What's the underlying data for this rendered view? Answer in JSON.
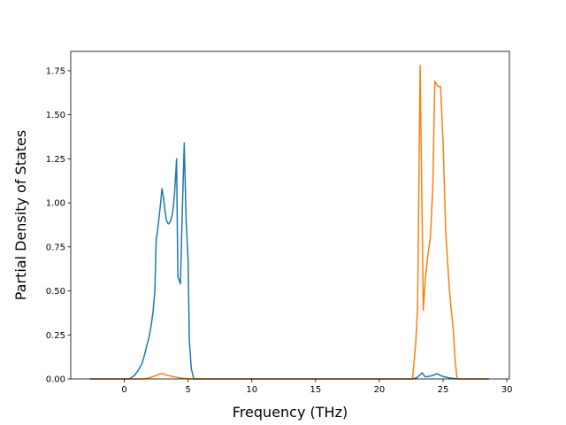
{
  "chart_data": {
    "type": "line",
    "title": "",
    "xlabel": "Frequency (THz)",
    "ylabel": "Partial Density of States",
    "xlim": [
      -4.2,
      30.2
    ],
    "ylim": [
      0.0,
      1.86
    ],
    "xticks": [
      0,
      5,
      10,
      15,
      20,
      25,
      30
    ],
    "yticks": [
      0.0,
      0.25,
      0.5,
      0.75,
      1.0,
      1.25,
      1.5,
      1.75
    ],
    "grid": false,
    "legend": "none",
    "series": [
      {
        "color": "#1f77b4",
        "points": [
          [
            -2.7,
            0.0
          ],
          [
            0.0,
            0.0
          ],
          [
            0.4,
            0.0
          ],
          [
            0.8,
            0.02
          ],
          [
            1.1,
            0.05
          ],
          [
            1.4,
            0.09
          ],
          [
            1.6,
            0.14
          ],
          [
            1.8,
            0.2
          ],
          [
            1.95,
            0.24
          ],
          [
            2.1,
            0.3
          ],
          [
            2.25,
            0.38
          ],
          [
            2.4,
            0.5
          ],
          [
            2.5,
            0.79
          ],
          [
            2.6,
            0.84
          ],
          [
            2.7,
            0.9
          ],
          [
            2.85,
            1.0
          ],
          [
            2.95,
            1.08
          ],
          [
            3.05,
            1.04
          ],
          [
            3.2,
            0.95
          ],
          [
            3.3,
            0.9
          ],
          [
            3.45,
            0.88
          ],
          [
            3.6,
            0.89
          ],
          [
            3.75,
            0.93
          ],
          [
            3.85,
            0.98
          ],
          [
            3.95,
            1.06
          ],
          [
            4.1,
            1.25
          ],
          [
            4.2,
            0.58
          ],
          [
            4.4,
            0.54
          ],
          [
            4.55,
            0.95
          ],
          [
            4.7,
            1.34
          ],
          [
            4.85,
            0.9
          ],
          [
            5.0,
            0.68
          ],
          [
            5.1,
            0.22
          ],
          [
            5.25,
            0.06
          ],
          [
            5.45,
            0.0
          ],
          [
            6.0,
            0.0
          ],
          [
            10.0,
            0.0
          ],
          [
            22.5,
            0.0
          ],
          [
            22.9,
            0.005
          ],
          [
            23.15,
            0.02
          ],
          [
            23.35,
            0.035
          ],
          [
            23.6,
            0.012
          ],
          [
            23.9,
            0.015
          ],
          [
            24.2,
            0.02
          ],
          [
            24.5,
            0.03
          ],
          [
            24.8,
            0.02
          ],
          [
            25.1,
            0.012
          ],
          [
            25.5,
            0.006
          ],
          [
            25.9,
            0.002
          ],
          [
            26.3,
            0.0
          ],
          [
            28.6,
            0.0
          ]
        ]
      },
      {
        "color": "#ff7f0e",
        "points": [
          [
            -2.7,
            0.0
          ],
          [
            0.0,
            0.0
          ],
          [
            1.5,
            0.0
          ],
          [
            1.9,
            0.005
          ],
          [
            2.2,
            0.012
          ],
          [
            2.5,
            0.02
          ],
          [
            2.75,
            0.028
          ],
          [
            2.95,
            0.031
          ],
          [
            3.2,
            0.024
          ],
          [
            3.5,
            0.018
          ],
          [
            3.8,
            0.014
          ],
          [
            4.2,
            0.008
          ],
          [
            4.6,
            0.004
          ],
          [
            5.0,
            0.001
          ],
          [
            5.4,
            0.0
          ],
          [
            10.0,
            0.0
          ],
          [
            22.6,
            0.0
          ],
          [
            22.85,
            0.2
          ],
          [
            23.0,
            0.4
          ],
          [
            23.2,
            1.78
          ],
          [
            23.45,
            0.39
          ],
          [
            23.6,
            0.56
          ],
          [
            23.8,
            0.7
          ],
          [
            24.0,
            0.8
          ],
          [
            24.2,
            1.1
          ],
          [
            24.35,
            1.69
          ],
          [
            24.6,
            1.66
          ],
          [
            24.8,
            1.66
          ],
          [
            25.0,
            1.34
          ],
          [
            25.2,
            0.85
          ],
          [
            25.45,
            0.55
          ],
          [
            25.6,
            0.42
          ],
          [
            25.8,
            0.28
          ],
          [
            25.95,
            0.1
          ],
          [
            26.1,
            0.0
          ],
          [
            28.6,
            0.0
          ]
        ]
      }
    ]
  }
}
